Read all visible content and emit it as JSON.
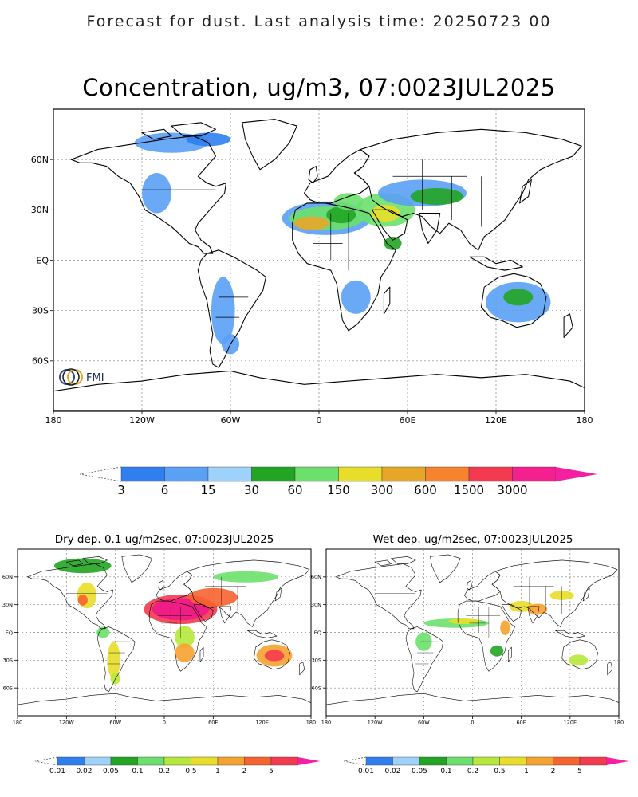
{
  "header": {
    "suptitle": "Forecast for dust. Last analysis time: 20250723 00"
  },
  "main_map": {
    "title": "Concentration, ug/m3, 07:0023JUL2025",
    "lat_ticks": [
      "60N",
      "30N",
      "EQ",
      "30S",
      "60S"
    ],
    "lon_ticks": [
      "180",
      "120W",
      "60W",
      "0",
      "60E",
      "120E",
      "180"
    ],
    "logo_text": "FMI",
    "colorbar": {
      "labels": [
        "3",
        "6",
        "15",
        "30",
        "60",
        "150",
        "300",
        "600",
        "1500",
        "3000"
      ],
      "colors": [
        "#2f7ff0",
        "#5aa0f5",
        "#9fd2fb",
        "#22a522",
        "#6ce06c",
        "#e8de2a",
        "#e8a628",
        "#f7832f",
        "#f43a4f",
        "#f5208f"
      ]
    }
  },
  "dry_map": {
    "title": "Dry dep. 0.1 ug/m2sec, 07:0023JUL2025",
    "lat_ticks": [
      "60N",
      "30N",
      "EQ",
      "30S",
      "60S"
    ],
    "lon_ticks": [
      "180",
      "120W",
      "60W",
      "0",
      "60E",
      "120E",
      "180"
    ],
    "colorbar": {
      "labels": [
        "0.01",
        "0.02",
        "0.05",
        "0.1",
        "0.2",
        "0.5",
        "1",
        "2",
        "5"
      ],
      "colors": [
        "#2f7ff0",
        "#9fd2fb",
        "#22a522",
        "#6ce06c",
        "#b6e83a",
        "#e8de2a",
        "#f7a12f",
        "#f7632f",
        "#f43a4f"
      ]
    }
  },
  "wet_map": {
    "title": "Wet dep. ug/m2sec, 07:0023JUL2025",
    "lat_ticks": [
      "60N",
      "30N",
      "EQ",
      "30S",
      "60S"
    ],
    "lon_ticks": [
      "180",
      "120W",
      "60W",
      "0",
      "60E",
      "120E",
      "180"
    ],
    "colorbar": {
      "labels": [
        "0.01",
        "0.02",
        "0.05",
        "0.1",
        "0.2",
        "0.5",
        "1",
        "2",
        "5"
      ],
      "colors": [
        "#2f7ff0",
        "#9fd2fb",
        "#22a522",
        "#6ce06c",
        "#b6e83a",
        "#e8de2a",
        "#f7a12f",
        "#f7632f",
        "#f43a4f"
      ]
    }
  },
  "arrow_color": "#f520a0"
}
